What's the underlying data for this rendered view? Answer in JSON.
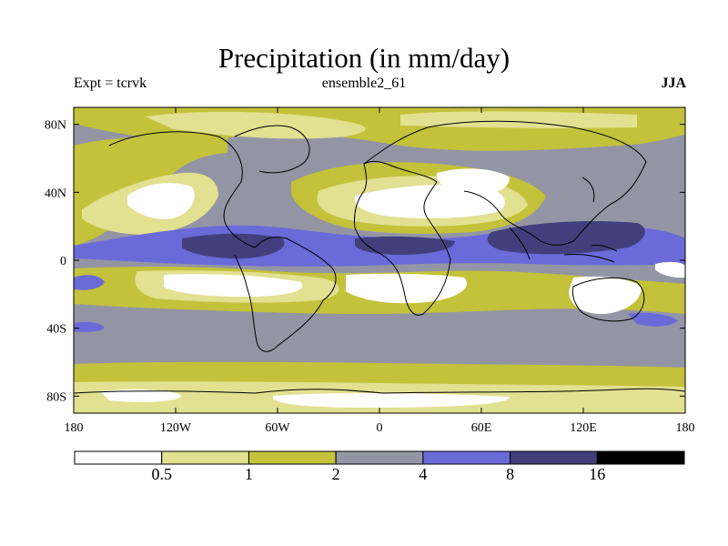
{
  "header": {
    "title": "Precipitation (in mm/day)",
    "experiment": "Expt = tcrvk",
    "ensemble": "ensemble2_61",
    "season": "JJA"
  },
  "map": {
    "projection": "cylindrical-equidistant",
    "lon_range": [
      -180,
      180
    ],
    "lat_range": [
      -90,
      90
    ],
    "x_ticks": [
      "180",
      "120W",
      "60W",
      "0",
      "60E",
      "120E",
      "180"
    ],
    "y_ticks": [
      "80N",
      "40N",
      "0",
      "40S",
      "80S"
    ],
    "x_tick_lons": [
      -180,
      -120,
      -60,
      0,
      60,
      120,
      180
    ],
    "y_tick_lats": [
      80,
      40,
      0,
      -40,
      -80
    ],
    "coastlines": true
  },
  "colorbar": {
    "labels": [
      "0.5",
      "1",
      "2",
      "4",
      "8",
      "16"
    ],
    "bins": [
      {
        "range": "<0.5",
        "color": "#ffffff"
      },
      {
        "range": "0.5-1",
        "color": "#e2e091"
      },
      {
        "range": "1-2",
        "color": "#c3c23a"
      },
      {
        "range": "2-4",
        "color": "#9495a4"
      },
      {
        "range": "4-8",
        "color": "#6a6ad9"
      },
      {
        "range": "8-16",
        "color": "#41407c"
      },
      {
        "range": ">16",
        "color": "#000000"
      }
    ]
  }
}
